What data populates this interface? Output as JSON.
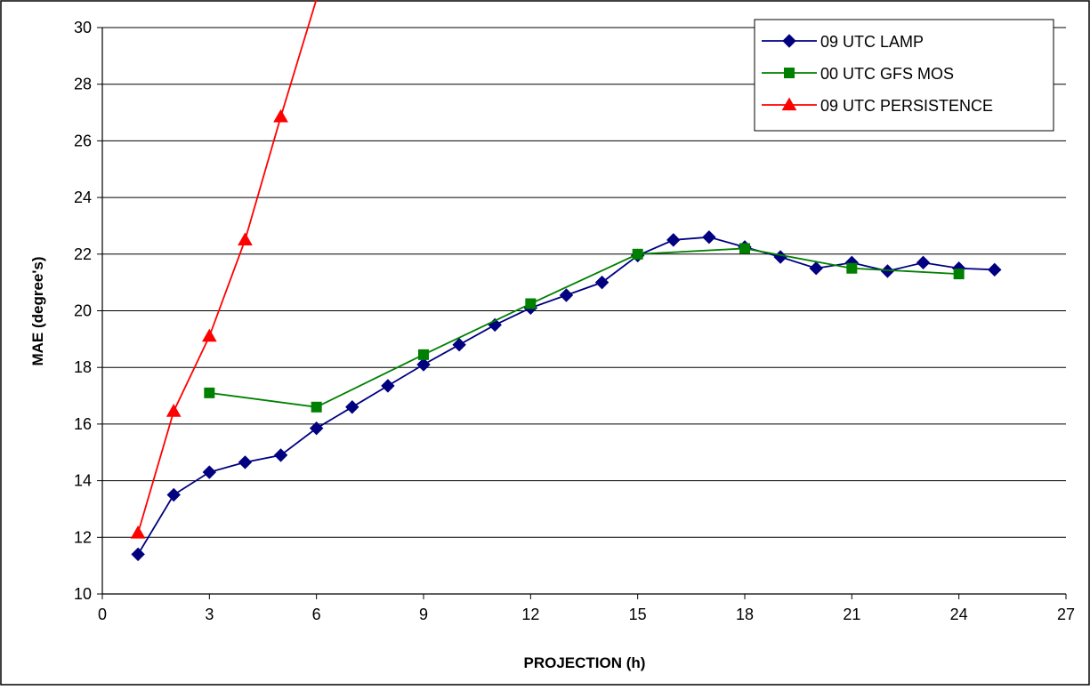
{
  "chart_data": {
    "type": "line",
    "title": "",
    "xlabel": "PROJECTION (h)",
    "ylabel": "MAE (degree's)",
    "xlim": [
      0,
      27
    ],
    "ylim": [
      10,
      30
    ],
    "xticks": [
      0,
      3,
      6,
      9,
      12,
      15,
      18,
      21,
      24,
      27
    ],
    "yticks": [
      10,
      12,
      14,
      16,
      18,
      20,
      22,
      24,
      26,
      28,
      30
    ],
    "grid": "horizontal",
    "legend_position": "top-right",
    "series": [
      {
        "name": "09 UTC LAMP",
        "color": "#000080",
        "marker": "diamond",
        "x": [
          1,
          2,
          3,
          4,
          5,
          6,
          7,
          8,
          9,
          10,
          11,
          12,
          13,
          14,
          15,
          16,
          17,
          18,
          19,
          20,
          21,
          22,
          23,
          24,
          25
        ],
        "y": [
          11.4,
          13.5,
          14.3,
          14.65,
          14.9,
          15.85,
          16.6,
          17.35,
          18.1,
          18.8,
          19.5,
          20.1,
          20.55,
          21.0,
          21.95,
          22.5,
          22.6,
          22.25,
          21.9,
          21.5,
          21.7,
          21.4,
          21.7,
          21.5,
          21.45
        ]
      },
      {
        "name": "00 UTC GFS MOS",
        "color": "#008000",
        "marker": "square",
        "x": [
          3,
          6,
          9,
          12,
          15,
          18,
          21,
          24
        ],
        "y": [
          17.1,
          16.6,
          18.45,
          20.25,
          22.0,
          22.2,
          21.5,
          21.3
        ]
      },
      {
        "name": "09 UTC PERSISTENCE",
        "color": "#ff0000",
        "marker": "triangle",
        "x": [
          1,
          2,
          3,
          4,
          5,
          6
        ],
        "y": [
          12.15,
          16.45,
          19.1,
          22.5,
          26.85,
          31.0
        ]
      }
    ]
  }
}
